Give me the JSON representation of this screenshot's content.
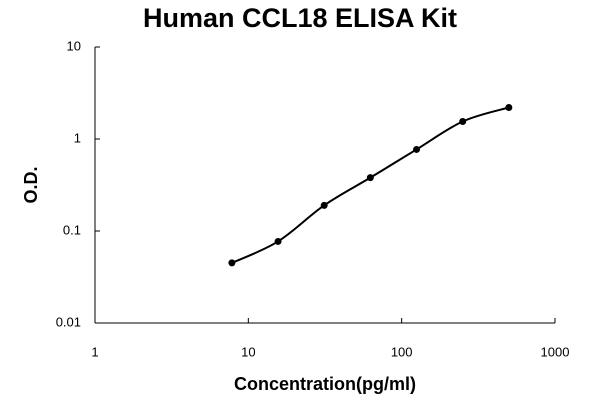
{
  "chart_data": {
    "type": "scatter",
    "title": "Human CCL18 ELISA Kit",
    "x_label": "Concentration(pg/ml)",
    "y_label": "O.D.",
    "x": [
      7.8125,
      15.625,
      31.25,
      62.5,
      125,
      250,
      500
    ],
    "values": [
      0.045,
      0.077,
      0.19,
      0.38,
      0.77,
      1.55,
      2.2
    ],
    "color": "#000000",
    "trendline": true,
    "xlog": true,
    "ylog": true,
    "xlim": [
      1,
      1000
    ],
    "xticks": [
      1,
      10,
      100,
      1000
    ],
    "ylim": [
      0.01,
      10
    ],
    "yticks": [
      0.01,
      0.1,
      1,
      10
    ]
  }
}
